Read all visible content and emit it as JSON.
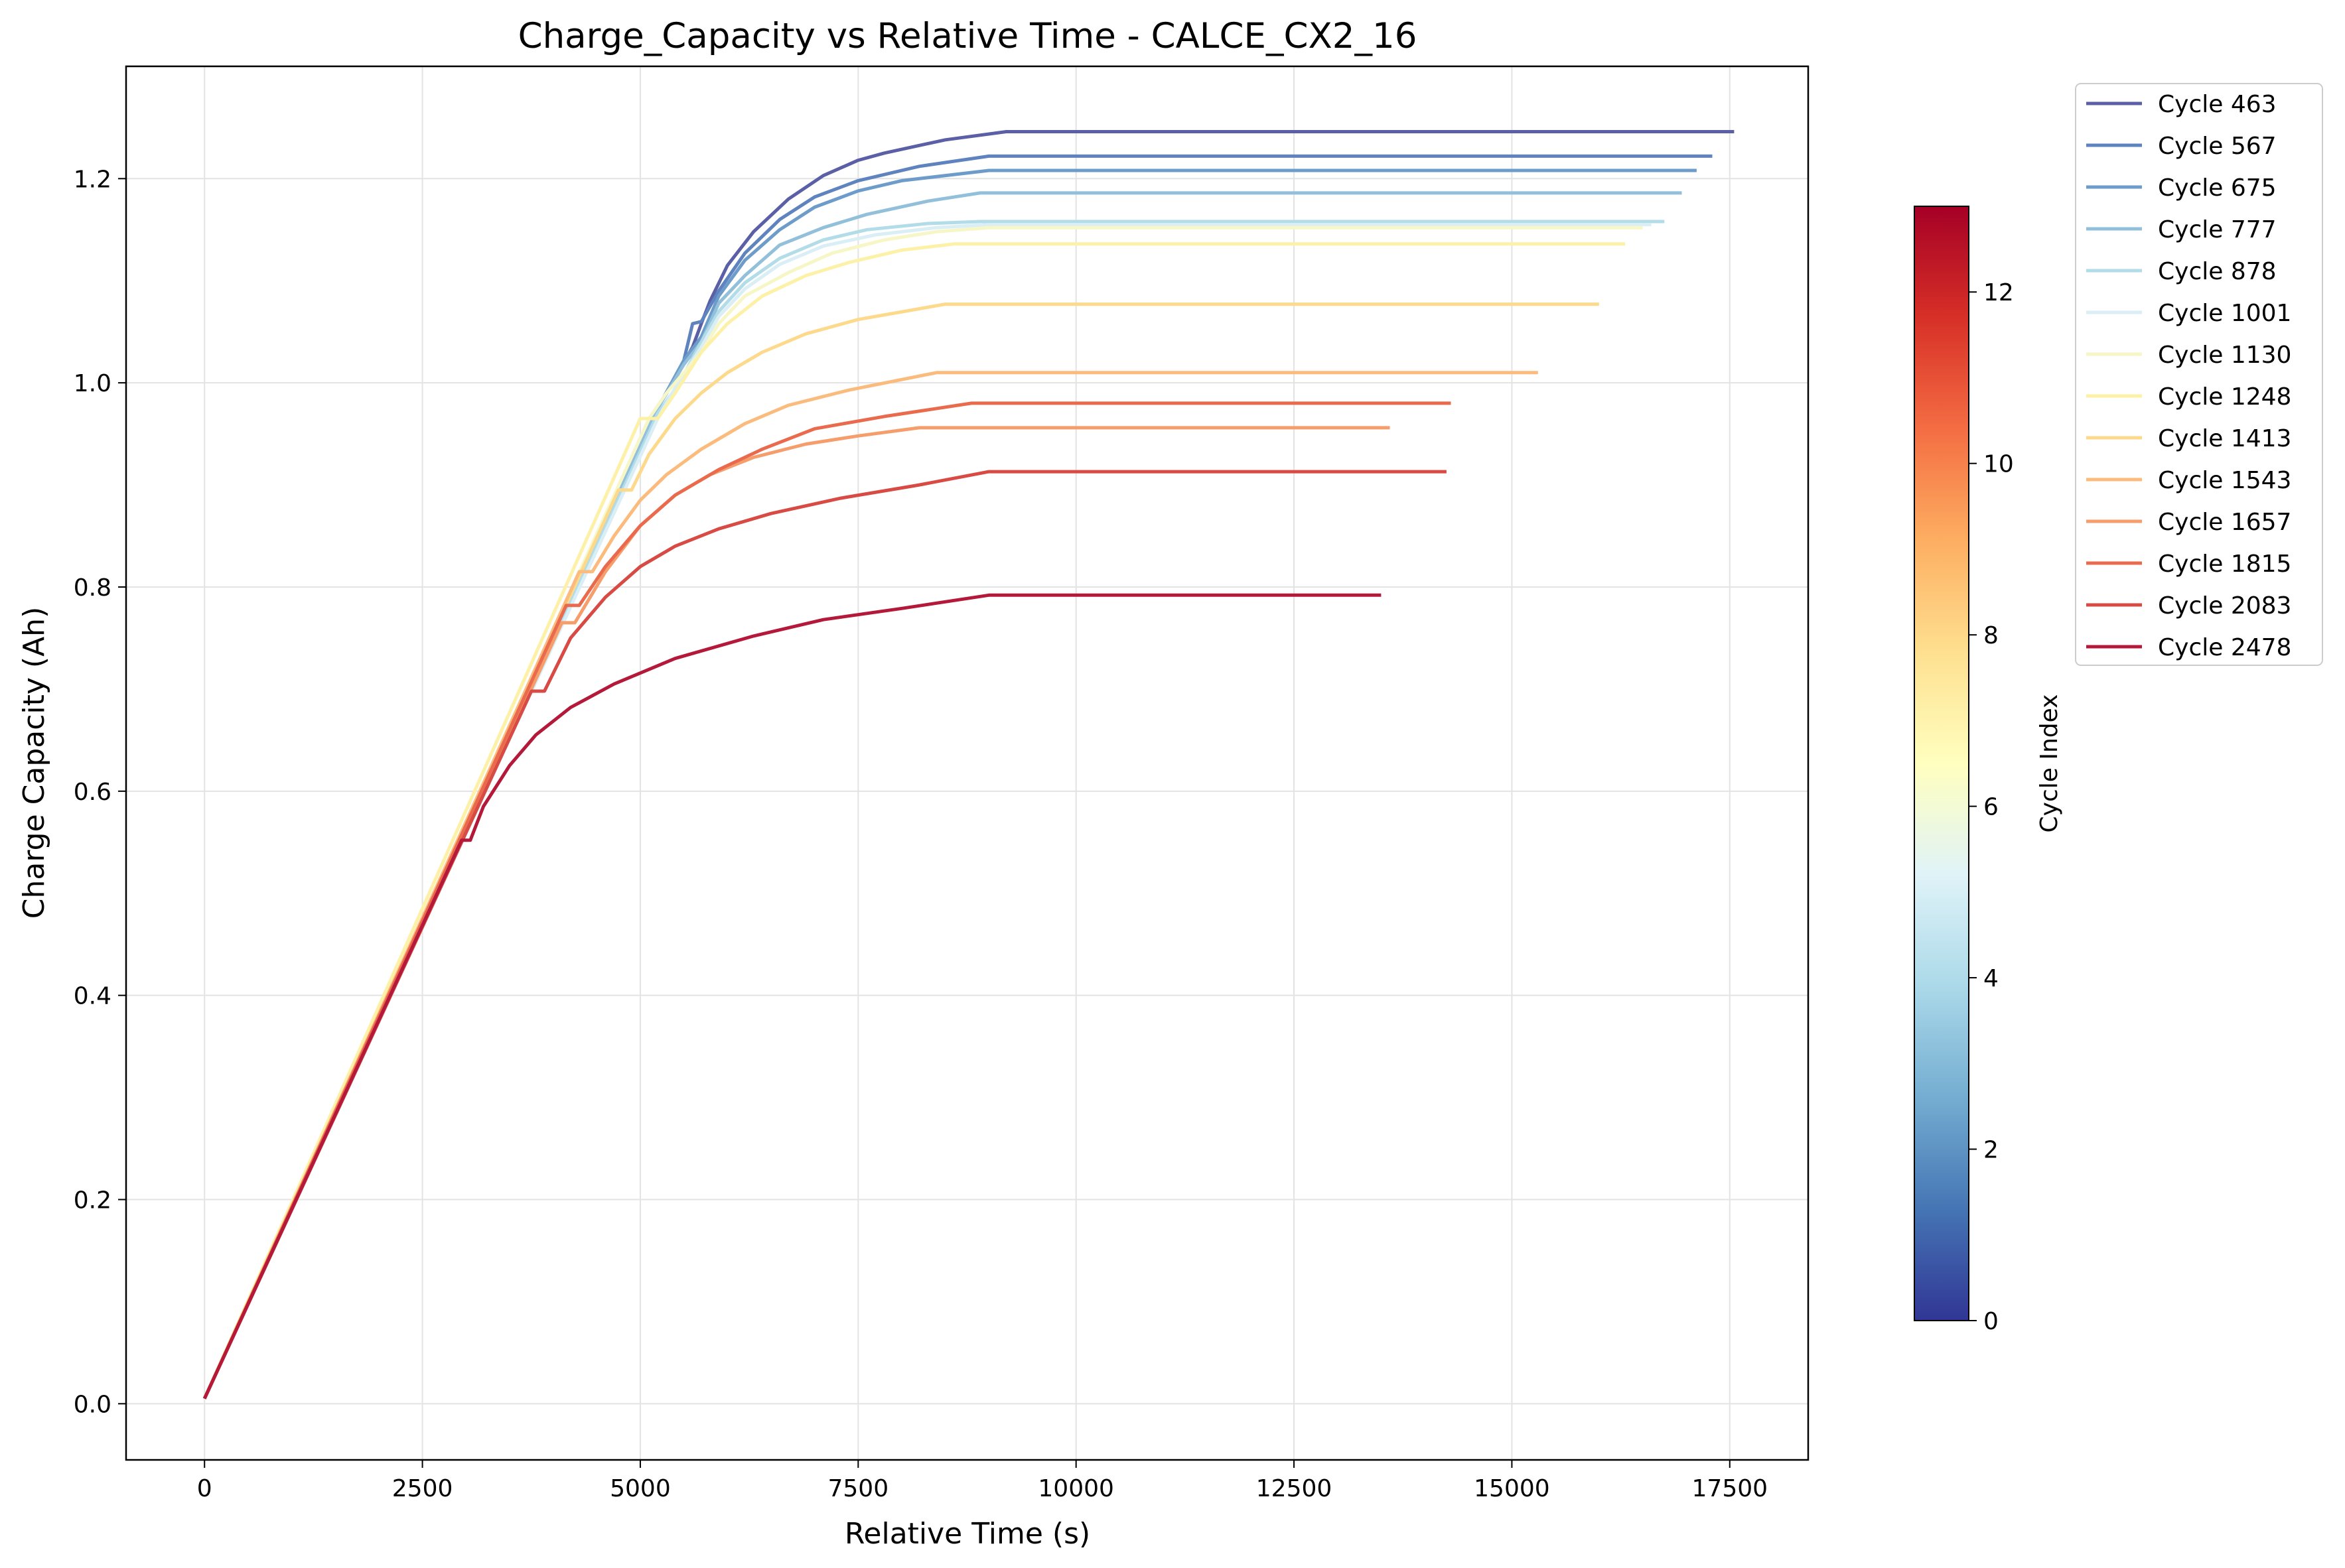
{
  "chart_data": {
    "type": "line",
    "title": "Charge_Capacity vs Relative Time - CALCE_CX2_16",
    "xlabel": "Relative Time (s)",
    "ylabel": "Charge Capacity (Ah)",
    "xlim": [
      -900,
      18400
    ],
    "ylim": [
      -0.055,
      1.31
    ],
    "xticks": [
      0,
      2500,
      5000,
      7500,
      10000,
      12500,
      15000,
      17500
    ],
    "yticks": [
      0.0,
      0.2,
      0.4,
      0.6,
      0.8,
      1.0,
      1.2
    ],
    "xtick_labels": [
      "0",
      "2500",
      "5000",
      "7500",
      "10000",
      "12500",
      "15000",
      "17500"
    ],
    "ytick_labels": [
      "0.0",
      "0.2",
      "0.4",
      "0.6",
      "0.8",
      "1.0",
      "1.2"
    ],
    "grid": true,
    "legend_position": "outside-right-top",
    "colorbar": {
      "label": "Cycle Index",
      "min": 0,
      "max": 13,
      "ticks": [
        0,
        2,
        4,
        6,
        8,
        10,
        12
      ],
      "tick_labels": [
        "0",
        "2",
        "4",
        "6",
        "8",
        "10",
        "12"
      ],
      "colormap": [
        "#313695",
        "#4575b4",
        "#74add1",
        "#abd9e9",
        "#e0f3f8",
        "#ffffbf",
        "#fee090",
        "#fdae61",
        "#f46d43",
        "#d73027",
        "#a50026"
      ]
    },
    "series": [
      {
        "name": "Cycle 463",
        "color": "#5a5fa6",
        "x": [
          0,
          5200,
          5600,
          5700,
          5800,
          6000,
          6300,
          6700,
          7100,
          7500,
          7800,
          8500,
          9200,
          17550
        ],
        "y": [
          0.005,
          0.975,
          1.035,
          1.058,
          1.08,
          1.115,
          1.148,
          1.18,
          1.203,
          1.218,
          1.225,
          1.238,
          1.246,
          1.246
        ]
      },
      {
        "name": "Cycle 567",
        "color": "#5e83bf",
        "x": [
          0,
          5200,
          5500,
          5600,
          5700,
          5900,
          6200,
          6600,
          7000,
          7500,
          8200,
          9000,
          17300
        ],
        "y": [
          0.005,
          0.975,
          1.022,
          1.058,
          1.06,
          1.09,
          1.127,
          1.16,
          1.182,
          1.198,
          1.212,
          1.222,
          1.222
        ]
      },
      {
        "name": "Cycle 675",
        "color": "#6d9ccb",
        "x": [
          0,
          5200,
          5500,
          5700,
          5900,
          6200,
          6600,
          7000,
          7500,
          8000,
          9000,
          17120
        ],
        "y": [
          0.005,
          0.975,
          1.022,
          1.045,
          1.085,
          1.12,
          1.15,
          1.172,
          1.188,
          1.198,
          1.208,
          1.208
        ]
      },
      {
        "name": "Cycle 777",
        "color": "#92c0db",
        "x": [
          0,
          5200,
          5500,
          5700,
          5900,
          6200,
          6600,
          7100,
          7600,
          8300,
          8900,
          16950
        ],
        "y": [
          0.005,
          0.975,
          1.018,
          1.04,
          1.078,
          1.105,
          1.135,
          1.152,
          1.165,
          1.178,
          1.186,
          1.186
        ]
      },
      {
        "name": "Cycle 878",
        "color": "#b3dce9",
        "x": [
          0,
          5200,
          5450,
          5700,
          5900,
          6200,
          6600,
          7100,
          7600,
          8300,
          8900,
          16750
        ],
        "y": [
          0.005,
          0.97,
          1.0,
          1.04,
          1.07,
          1.098,
          1.122,
          1.14,
          1.15,
          1.156,
          1.158,
          1.158
        ]
      },
      {
        "name": "Cycle 1001",
        "color": "#daeef5",
        "x": [
          0,
          5200,
          5400,
          5700,
          5900,
          6200,
          6600,
          7100,
          7700,
          8400,
          9000,
          16600
        ],
        "y": [
          0.005,
          0.965,
          0.995,
          1.035,
          1.065,
          1.092,
          1.116,
          1.134,
          1.145,
          1.152,
          1.155,
          1.155
        ]
      },
      {
        "name": "Cycle 1130",
        "color": "#f6f6c6",
        "x": [
          0,
          5100,
          5300,
          5700,
          5900,
          6200,
          6700,
          7200,
          7800,
          8400,
          9000,
          16500
        ],
        "y": [
          0.005,
          0.965,
          0.99,
          1.03,
          1.058,
          1.085,
          1.108,
          1.127,
          1.14,
          1.148,
          1.152,
          1.152
        ]
      },
      {
        "name": "Cycle 1248",
        "color": "#fdf1a7",
        "x": [
          0,
          5000,
          5200,
          5400,
          5700,
          6000,
          6400,
          6900,
          7400,
          8000,
          8600,
          16300
        ],
        "y": [
          0.005,
          0.965,
          0.965,
          0.99,
          1.03,
          1.058,
          1.085,
          1.105,
          1.118,
          1.13,
          1.136,
          1.136
        ]
      },
      {
        "name": "Cycle 1413",
        "color": "#fdd98c",
        "x": [
          0,
          4750,
          4900,
          5100,
          5400,
          5700,
          6000,
          6400,
          6900,
          7500,
          8500,
          16000
        ],
        "y": [
          0.005,
          0.895,
          0.895,
          0.93,
          0.965,
          0.99,
          1.01,
          1.03,
          1.048,
          1.062,
          1.077,
          1.077
        ]
      },
      {
        "name": "Cycle 1543",
        "color": "#fbbb7d",
        "x": [
          0,
          4300,
          4450,
          4700,
          5000,
          5300,
          5700,
          6200,
          6700,
          7400,
          8400,
          15300
        ],
        "y": [
          0.005,
          0.815,
          0.815,
          0.85,
          0.885,
          0.91,
          0.935,
          0.96,
          0.978,
          0.993,
          1.01,
          1.01
        ]
      },
      {
        "name": "Cycle 1657",
        "color": "#f59e6c",
        "x": [
          0,
          4100,
          4250,
          4600,
          5000,
          5400,
          5800,
          6300,
          6900,
          7500,
          8200,
          13600
        ],
        "y": [
          0.005,
          0.765,
          0.765,
          0.815,
          0.86,
          0.89,
          0.91,
          0.927,
          0.94,
          0.948,
          0.956,
          0.956
        ]
      },
      {
        "name": "Cycle 1815",
        "color": "#ea6a4d",
        "x": [
          0,
          4150,
          4300,
          4600,
          5000,
          5400,
          5900,
          6400,
          7000,
          7800,
          8800,
          14300
        ],
        "y": [
          0.005,
          0.782,
          0.782,
          0.82,
          0.86,
          0.89,
          0.915,
          0.935,
          0.955,
          0.967,
          0.98,
          0.98
        ]
      },
      {
        "name": "Cycle 2083",
        "color": "#d84a44",
        "x": [
          0,
          3750,
          3900,
          4200,
          4600,
          5000,
          5400,
          5900,
          6500,
          7300,
          8200,
          9000,
          14250
        ],
        "y": [
          0.005,
          0.698,
          0.698,
          0.75,
          0.79,
          0.82,
          0.84,
          0.857,
          0.872,
          0.887,
          0.9,
          0.913,
          0.913
        ]
      },
      {
        "name": "Cycle 2478",
        "color": "#b5193a",
        "x": [
          0,
          2950,
          3050,
          3200,
          3500,
          3800,
          4200,
          4700,
          5400,
          6300,
          7100,
          8000,
          9000,
          13500
        ],
        "y": [
          0.005,
          0.552,
          0.552,
          0.585,
          0.625,
          0.655,
          0.682,
          0.705,
          0.73,
          0.752,
          0.768,
          0.779,
          0.792,
          0.792
        ]
      }
    ]
  }
}
